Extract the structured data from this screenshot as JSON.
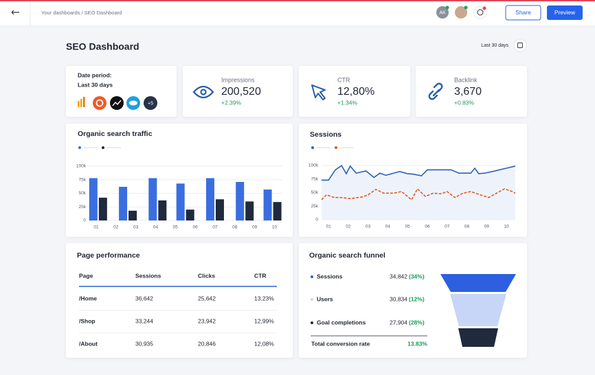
{
  "header": {
    "breadcrumb": "Your dashboards / SEO Dashboard",
    "avatar": "AK",
    "share": "Share",
    "preview": "Preview"
  },
  "title": "SEO Dashboard",
  "date_range": "Last 30 days",
  "date_card": {
    "label": "Date period:",
    "value": "Last 30 days",
    "more": "+5"
  },
  "kpis": [
    {
      "label": "Impressions",
      "value": "200,520",
      "change": "+2.39%"
    },
    {
      "label": "CTR",
      "value": "12,80%",
      "change": "+1.34%"
    },
    {
      "label": "Backlink",
      "value": "3,670",
      "change": "+0.83%"
    }
  ],
  "chart_data": [
    {
      "type": "bar",
      "title": "Organic search traffic",
      "x": [
        1.1,
        2.6,
        4.1,
        5.5,
        7.0,
        8.5,
        9.9
      ],
      "xlim": [
        0.1,
        10.4
      ],
      "xticks": [
        {
          "value": 1,
          "label": "01"
        },
        {
          "value": 2,
          "label": "02"
        },
        {
          "value": 3,
          "label": "03"
        },
        {
          "value": 4,
          "label": "04"
        },
        {
          "value": 5,
          "label": "05"
        },
        {
          "value": 6,
          "label": "06"
        },
        {
          "value": 7,
          "label": "07"
        },
        {
          "value": 8,
          "label": "08"
        },
        {
          "value": 9,
          "label": "09"
        },
        {
          "value": 10,
          "label": "10"
        }
      ],
      "ylim": [
        0,
        100000
      ],
      "yticks": [
        0,
        {
          "value": 25000,
          "label": "25k"
        },
        {
          "value": 50000,
          "label": "50k"
        },
        {
          "value": 75000,
          "label": "75k"
        },
        {
          "value": 100000,
          "label": "100k"
        }
      ],
      "grid": true,
      "series": [
        {
          "color": "#3a6ee0",
          "values": [
            78000,
            62000,
            78000,
            68000,
            78000,
            71000,
            57000
          ]
        },
        {
          "color": "#1f2a3c",
          "values": [
            42000,
            18000,
            37000,
            20000,
            39000,
            35000,
            34000
          ]
        }
      ]
    },
    {
      "type": "line",
      "title": "Sessions",
      "xlim": [
        0.65,
        10.45
      ],
      "xticks": [
        {
          "value": 1,
          "label": "01"
        },
        {
          "value": 2,
          "label": "02"
        },
        {
          "value": 3,
          "label": "03"
        },
        {
          "value": 4,
          "label": "04"
        },
        {
          "value": 5,
          "label": "05"
        },
        {
          "value": 6,
          "label": "06"
        },
        {
          "value": 7,
          "label": "07"
        },
        {
          "value": 8,
          "label": "08"
        },
        {
          "value": 9,
          "label": "09"
        },
        {
          "value": 10,
          "label": "10"
        }
      ],
      "ylim": [
        0,
        100000
      ],
      "yticks": [
        0,
        {
          "value": 25000,
          "label": "25k"
        },
        {
          "value": 50000,
          "label": "50k"
        },
        {
          "value": 75000,
          "label": "75k"
        },
        {
          "value": 100000,
          "label": "100k"
        }
      ],
      "grid": true,
      "series": [
        {
          "color": "#2d5fb8",
          "area": true,
          "dashed": false,
          "x": [
            0.65,
            1,
            1.35,
            1.66,
            1.9,
            2.1,
            2.4,
            2.9,
            3.3,
            3.6,
            3.9,
            4.3,
            4.6,
            5.0,
            5.3,
            5.7,
            6.0,
            6.6,
            7.2,
            7.6,
            8.2,
            8.4,
            8.6,
            8.9,
            9.3,
            10.0,
            10.45
          ],
          "values": [
            73000,
            73000,
            92000,
            100000,
            85000,
            99000,
            86000,
            90000,
            78000,
            86000,
            82000,
            86000,
            89000,
            85000,
            84000,
            81000,
            92000,
            92000,
            92000,
            86000,
            86000,
            95000,
            85000,
            86000,
            89000,
            95000,
            99000
          ]
        },
        {
          "color": "#e05a1e",
          "area": false,
          "dashed": true,
          "x": [
            0.65,
            0.9,
            1.3,
            1.66,
            2.1,
            2.7,
            3.0,
            3.4,
            3.8,
            4.3,
            4.7,
            5.2,
            5.5,
            5.9,
            6.3,
            6.7,
            7.0,
            7.4,
            7.8,
            8.2,
            8.6,
            9.1,
            9.5,
            9.9,
            10.3,
            10.45
          ],
          "values": [
            37000,
            46000,
            41000,
            41000,
            39000,
            42000,
            46000,
            56000,
            49000,
            49000,
            52000,
            37000,
            57000,
            43000,
            49000,
            48000,
            52000,
            41000,
            49000,
            52000,
            47000,
            41000,
            49000,
            57000,
            52000,
            49000
          ]
        }
      ]
    }
  ],
  "table": {
    "title": "Page performance",
    "headers": [
      "Page",
      "Sessions",
      "Clicks",
      "CTR"
    ],
    "rows": [
      [
        "/Home",
        "36,642",
        "25,642",
        "13,23%"
      ],
      [
        "/Shop",
        "33,244",
        "23,942",
        "12,99%"
      ],
      [
        "/About",
        "30,935",
        "20,846",
        "12,08%"
      ]
    ]
  },
  "funnel": {
    "title": "Organic search funnel",
    "items": [
      {
        "label": "Sessions",
        "value": "34,842",
        "pct": "(34%)",
        "color": "#2d5fe0"
      },
      {
        "label": "Users",
        "value": "30,834",
        "pct": "(12%)",
        "color": "#c7d6f7"
      },
      {
        "label": "Goal completions",
        "value": "27,904",
        "pct": "(28%)",
        "color": "#1f2a3c"
      }
    ],
    "total": {
      "label": "Total conversion rate",
      "value": "13.83%"
    }
  }
}
